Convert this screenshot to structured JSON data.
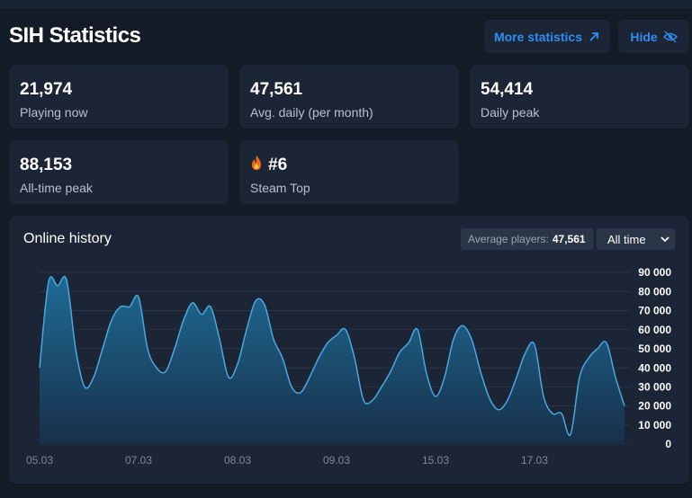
{
  "header": {
    "title": "SIH Statistics",
    "buttons": [
      "More statistics",
      "Hide"
    ]
  },
  "stats": [
    {
      "value": "21,974",
      "label": "Playing now"
    },
    {
      "value": "47,561",
      "label": "Avg. daily (per month)"
    },
    {
      "value": "54,414",
      "label": "Daily peak"
    },
    {
      "value": "88,153",
      "label": "All-time peak"
    },
    {
      "value": "#6",
      "label": "Steam Top"
    }
  ],
  "chart_data": {
    "type": "area",
    "title": "Online history",
    "average_label": "Average players:",
    "average_value": "47,561",
    "range_select": "All time",
    "categories": [
      "05.03",
      null,
      null,
      null,
      null,
      null,
      null,
      null,
      null,
      null,
      null,
      "07.03",
      null,
      null,
      null,
      null,
      null,
      null,
      null,
      null,
      null,
      null,
      "08.03",
      null,
      null,
      null,
      null,
      null,
      null,
      null,
      null,
      null,
      null,
      "09.03",
      null,
      null,
      null,
      null,
      null,
      null,
      null,
      null,
      null,
      null,
      "15.03",
      null,
      null,
      null,
      null,
      null,
      null,
      null,
      null,
      null,
      null,
      "17.03",
      null,
      null,
      null,
      null,
      null,
      null,
      null,
      null,
      null,
      null
    ],
    "values": [
      40000,
      85000,
      83000,
      86000,
      50000,
      30000,
      35000,
      50000,
      65000,
      72000,
      72000,
      77000,
      50000,
      40000,
      38000,
      50000,
      65000,
      74000,
      68000,
      72000,
      55000,
      35000,
      42000,
      60000,
      75000,
      73000,
      55000,
      45000,
      30000,
      27000,
      35000,
      45000,
      53000,
      57000,
      60000,
      45000,
      23000,
      23000,
      30000,
      38000,
      48000,
      53000,
      60000,
      37000,
      25000,
      35000,
      55000,
      62000,
      55000,
      38000,
      24000,
      18000,
      23000,
      35000,
      48000,
      52000,
      25000,
      16000,
      16000,
      5000,
      35000,
      45000,
      50000,
      53000,
      35000,
      20000
    ],
    "color": "#4aa8e0",
    "ylim": [
      0,
      90000
    ],
    "yticks": [
      0,
      {
        "value": 10000,
        "label": "10 000"
      },
      {
        "value": 20000,
        "label": "20 000"
      },
      {
        "value": 30000,
        "label": "30 000"
      },
      {
        "value": 40000,
        "label": "40 000"
      },
      {
        "value": 50000,
        "label": "50 000"
      },
      {
        "value": 60000,
        "label": "60 000"
      },
      {
        "value": 70000,
        "label": "70 000"
      },
      {
        "value": 80000,
        "label": "80 000"
      },
      {
        "value": 90000,
        "label": "90 000"
      }
    ],
    "grid": true
  }
}
